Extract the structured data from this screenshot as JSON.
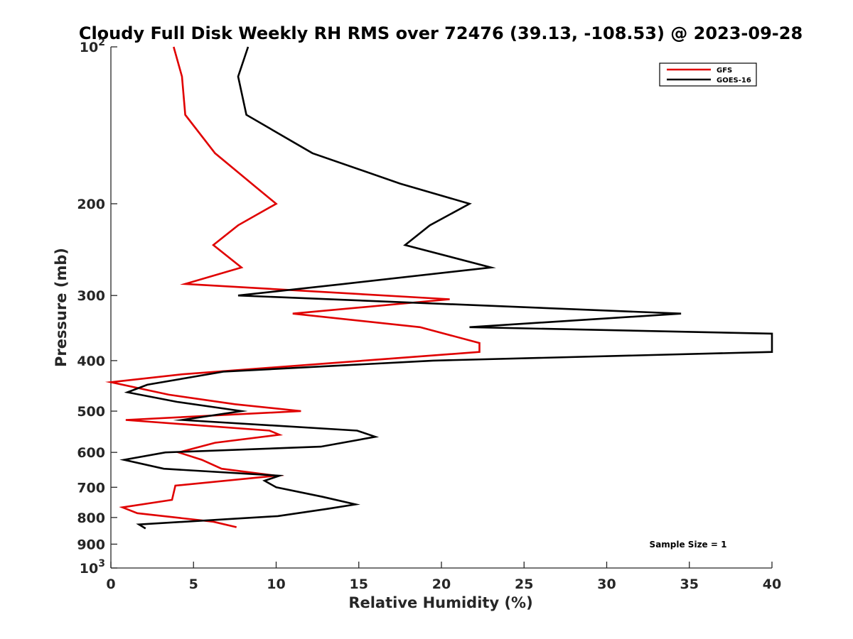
{
  "chart_data": {
    "type": "line",
    "title": "Cloudy Full Disk Weekly RH RMS over 72476 (39.13, -108.53) @ 2023-09-28",
    "xlabel": "Relative Humidity (%)",
    "ylabel": "Pressure (mb)",
    "xlim": [
      0,
      40
    ],
    "ylim": [
      100,
      1000
    ],
    "yscale": "log",
    "yreversed": true,
    "grid": false,
    "xticks": [
      0,
      5,
      10,
      15,
      20,
      25,
      30,
      35,
      40
    ],
    "xtick_labels": [
      "0",
      "5",
      "10",
      "15",
      "20",
      "25",
      "30",
      "35",
      "40"
    ],
    "yticks": [
      100,
      200,
      300,
      400,
      500,
      600,
      700,
      800,
      900,
      1000
    ],
    "ytick_labels": [
      {
        "base": "10",
        "exp": "2"
      },
      {
        "base": "200",
        "exp": ""
      },
      {
        "base": "300",
        "exp": ""
      },
      {
        "base": "400",
        "exp": ""
      },
      {
        "base": "500",
        "exp": ""
      },
      {
        "base": "600",
        "exp": ""
      },
      {
        "base": "700",
        "exp": ""
      },
      {
        "base": "800",
        "exp": ""
      },
      {
        "base": "900",
        "exp": ""
      },
      {
        "base": "10",
        "exp": "3"
      }
    ],
    "legend_position": "top-right",
    "annotation": "Sample Size = 1",
    "series": [
      {
        "name": "GFS",
        "color": "#e00000",
        "points": [
          [
            3.8,
            100
          ],
          [
            4.3,
            114
          ],
          [
            4.5,
            135
          ],
          [
            6.3,
            160
          ],
          [
            8.7,
            185
          ],
          [
            10.0,
            200
          ],
          [
            7.7,
            220
          ],
          [
            6.2,
            240
          ],
          [
            7.9,
            265
          ],
          [
            4.5,
            285
          ],
          [
            20.5,
            305
          ],
          [
            11.0,
            325
          ],
          [
            18.7,
            345
          ],
          [
            22.3,
            370
          ],
          [
            22.3,
            385
          ],
          [
            4.3,
            425
          ],
          [
            0.0,
            440
          ],
          [
            3.5,
            465
          ],
          [
            7.5,
            485
          ],
          [
            11.5,
            500
          ],
          [
            0.9,
            520
          ],
          [
            9.6,
            545
          ],
          [
            10.2,
            555
          ],
          [
            6.3,
            575
          ],
          [
            4.1,
            600
          ],
          [
            5.5,
            620
          ],
          [
            6.7,
            645
          ],
          [
            10.0,
            665
          ],
          [
            3.9,
            695
          ],
          [
            3.7,
            740
          ],
          [
            0.7,
            765
          ],
          [
            1.6,
            785
          ],
          [
            6.2,
            815
          ],
          [
            7.6,
            835
          ]
        ]
      },
      {
        "name": "GOES-16",
        "color": "#000000",
        "points": [
          [
            8.3,
            100
          ],
          [
            7.7,
            114
          ],
          [
            8.2,
            135
          ],
          [
            12.2,
            160
          ],
          [
            17.5,
            183
          ],
          [
            21.7,
            200
          ],
          [
            19.3,
            220
          ],
          [
            17.8,
            240
          ],
          [
            23.0,
            265
          ],
          [
            14.1,
            285
          ],
          [
            7.7,
            300
          ],
          [
            34.5,
            325
          ],
          [
            21.7,
            345
          ],
          [
            40.0,
            355
          ],
          [
            40.0,
            385
          ],
          [
            19.5,
            400
          ],
          [
            6.8,
            420
          ],
          [
            2.2,
            445
          ],
          [
            1.0,
            460
          ],
          [
            4.0,
            480
          ],
          [
            7.9,
            500
          ],
          [
            4.3,
            520
          ],
          [
            14.9,
            545
          ],
          [
            16.0,
            560
          ],
          [
            12.7,
            585
          ],
          [
            3.3,
            600
          ],
          [
            0.8,
            620
          ],
          [
            3.2,
            645
          ],
          [
            10.2,
            665
          ],
          [
            9.3,
            680
          ],
          [
            10.0,
            700
          ],
          [
            12.8,
            730
          ],
          [
            14.8,
            755
          ],
          [
            13.1,
            770
          ],
          [
            10.1,
            795
          ],
          [
            1.7,
            825
          ],
          [
            2.1,
            840
          ]
        ]
      }
    ]
  }
}
